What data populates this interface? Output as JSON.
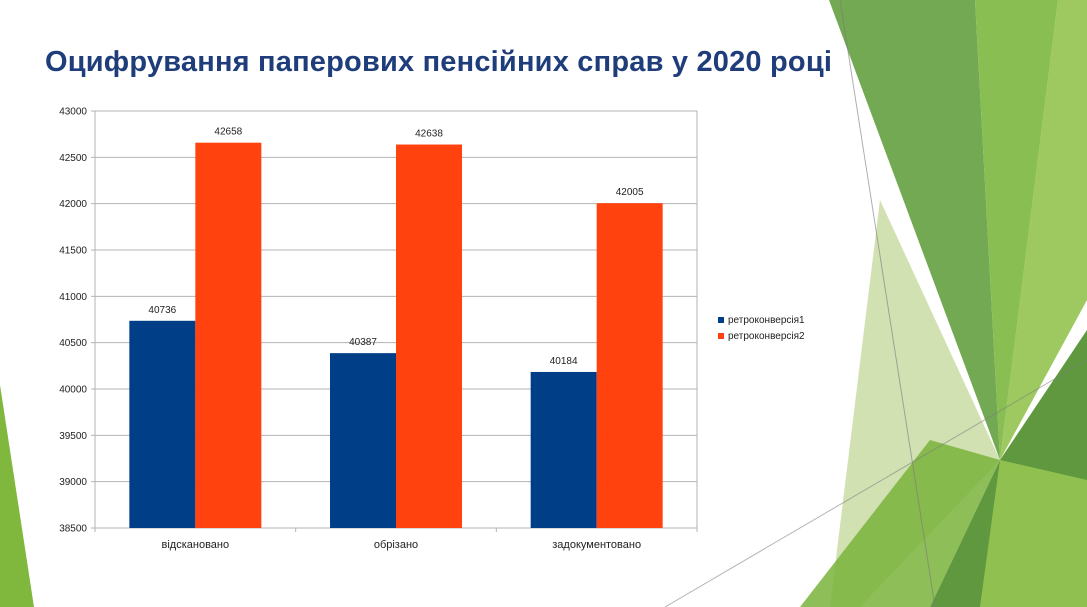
{
  "slide": {
    "title": "Оцифрування паперових пенсійних справ у 2020 році"
  },
  "colors": {
    "series1": "#003f87",
    "series2": "#ff420e",
    "title": "#1f3d7a",
    "accent_green": "#6aa32c"
  },
  "chart_data": {
    "type": "bar",
    "categories": [
      "відскановано",
      "обрізано",
      "задокументовано"
    ],
    "series": [
      {
        "name": "ретроконверсія1",
        "values": [
          40736,
          40387,
          40184
        ]
      },
      {
        "name": "ретроконверсія2",
        "values": [
          42658,
          42638,
          42005
        ]
      }
    ],
    "ylim": [
      38500,
      43000
    ],
    "yticks": [
      38500,
      39000,
      39500,
      40000,
      40500,
      41000,
      41500,
      42000,
      42500,
      43000
    ],
    "grid": true,
    "legend_position": "right",
    "data_labels": true
  }
}
